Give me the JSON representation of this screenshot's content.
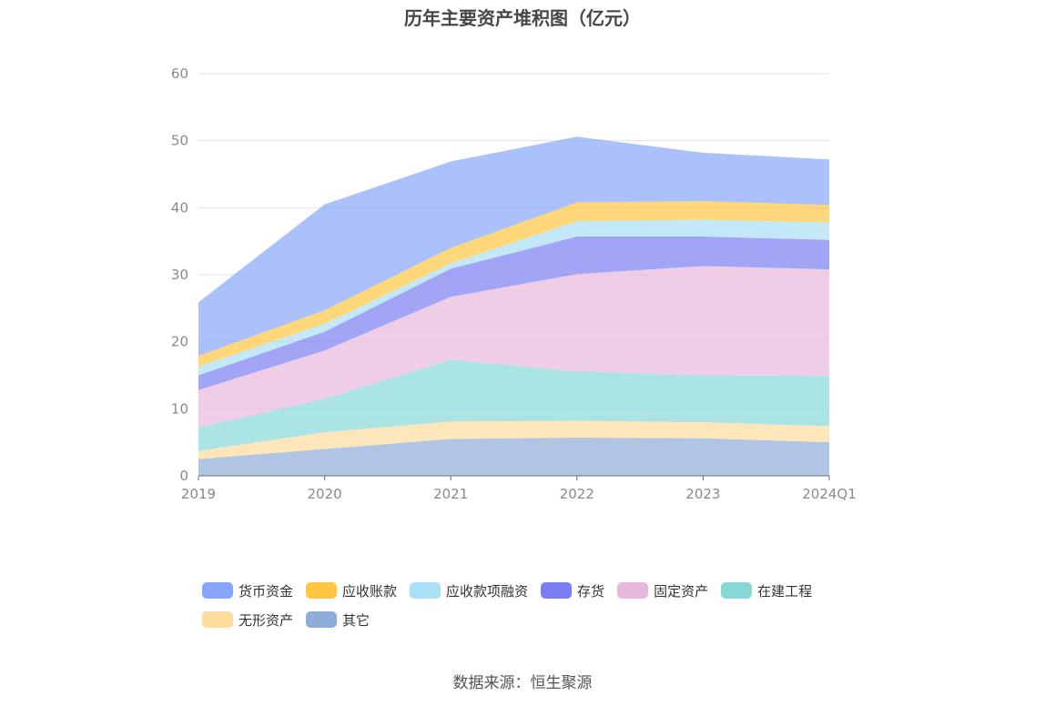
{
  "chart_data": {
    "type": "area",
    "stacked": true,
    "title": "历年主要资产堆积图（亿元）",
    "x": [
      "2019",
      "2020",
      "2021",
      "2022",
      "2023",
      "2024Q1"
    ],
    "ylim": [
      0,
      60
    ],
    "yticks": [
      0,
      10,
      20,
      30,
      40,
      50,
      60
    ],
    "grid": true,
    "legend_position": "bottom",
    "series": [
      {
        "name": "其它",
        "color": "#8fadd9",
        "values": [
          2.5,
          4.0,
          5.5,
          5.7,
          5.6,
          5.0
        ]
      },
      {
        "name": "无形资产",
        "color": "#fddc9e",
        "values": [
          1.2,
          2.5,
          2.6,
          2.5,
          2.4,
          2.4
        ]
      },
      {
        "name": "在建工程",
        "color": "#88d8d8",
        "values": [
          3.5,
          5.0,
          9.2,
          7.4,
          7.0,
          7.5
        ]
      },
      {
        "name": "固定资产",
        "color": "#e8b8dc",
        "values": [
          5.6,
          7.2,
          9.4,
          14.5,
          16.3,
          15.9
        ]
      },
      {
        "name": "存货",
        "color": "#7b7ef2",
        "values": [
          2.2,
          2.8,
          4.2,
          5.6,
          4.4,
          4.4
        ]
      },
      {
        "name": "应收款项融资",
        "color": "#a9dff7",
        "values": [
          1.3,
          1.2,
          0.8,
          2.3,
          2.5,
          2.6
        ]
      },
      {
        "name": "应收账款",
        "color": "#fdc643",
        "values": [
          1.6,
          2.0,
          2.3,
          2.8,
          2.8,
          2.6
        ]
      },
      {
        "name": "货币资金",
        "color": "#87a6fb",
        "values": [
          8.0,
          15.8,
          12.9,
          9.8,
          7.2,
          6.8
        ]
      }
    ],
    "legend_order": [
      "货币资金",
      "应收账款",
      "应收款项融资",
      "存货",
      "固定资产",
      "在建工程",
      "无形资产",
      "其它"
    ]
  },
  "source": "数据来源：恒生聚源"
}
